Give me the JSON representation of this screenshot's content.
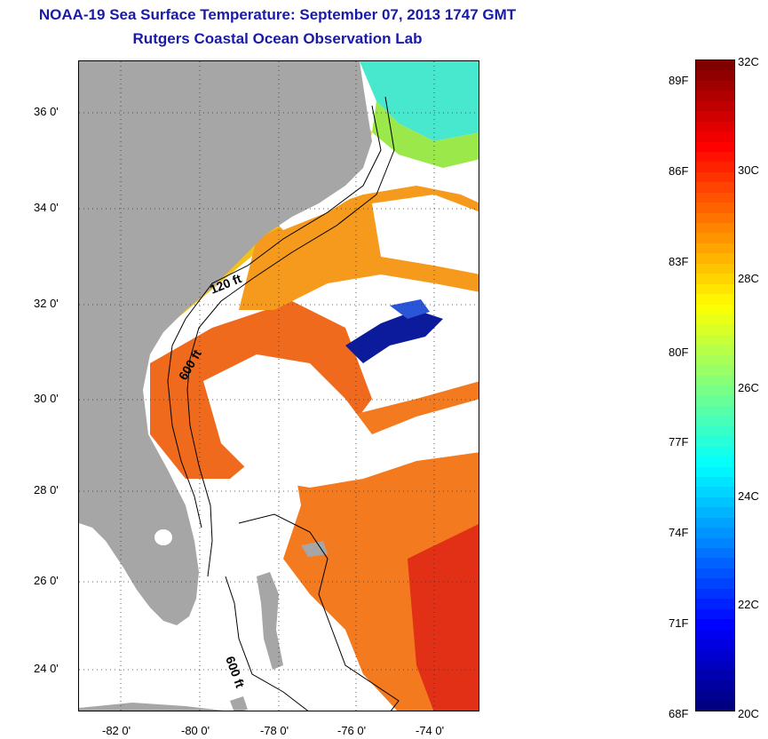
{
  "title": "NOAA-19 Sea Surface Temperature:  September 07, 2013 1747 GMT",
  "subtitle": "Rutgers Coastal Ocean Observation Lab",
  "map": {
    "lat_labels": [
      "36 0'",
      "34 0'",
      "32 0'",
      "30 0'",
      "28 0'",
      "26 0'",
      "24 0'"
    ],
    "lon_labels": [
      "-82 0'",
      "-80 0'",
      "-78 0'",
      "-76 0'",
      "-74 0'"
    ],
    "contour_labels": [
      "120 ft",
      "600 ft",
      "600 ft"
    ],
    "colors": {
      "land": "#a6a6a6",
      "cloud": "#ffffff",
      "warm": "#f26a1c",
      "shelf": "#f5c21b",
      "cool_blue": "#0a1aa0",
      "cyan": "#3ee8d2"
    }
  },
  "colorbar": {
    "fahrenheit_labels": [
      "89F",
      "86F",
      "83F",
      "80F",
      "77F",
      "74F",
      "71F",
      "68F"
    ],
    "celsius_labels": [
      "32C",
      "30C",
      "28C",
      "26C",
      "24C",
      "22C",
      "20C"
    ],
    "range_c": [
      20,
      32
    ],
    "range_f": [
      68,
      89.6
    ]
  }
}
